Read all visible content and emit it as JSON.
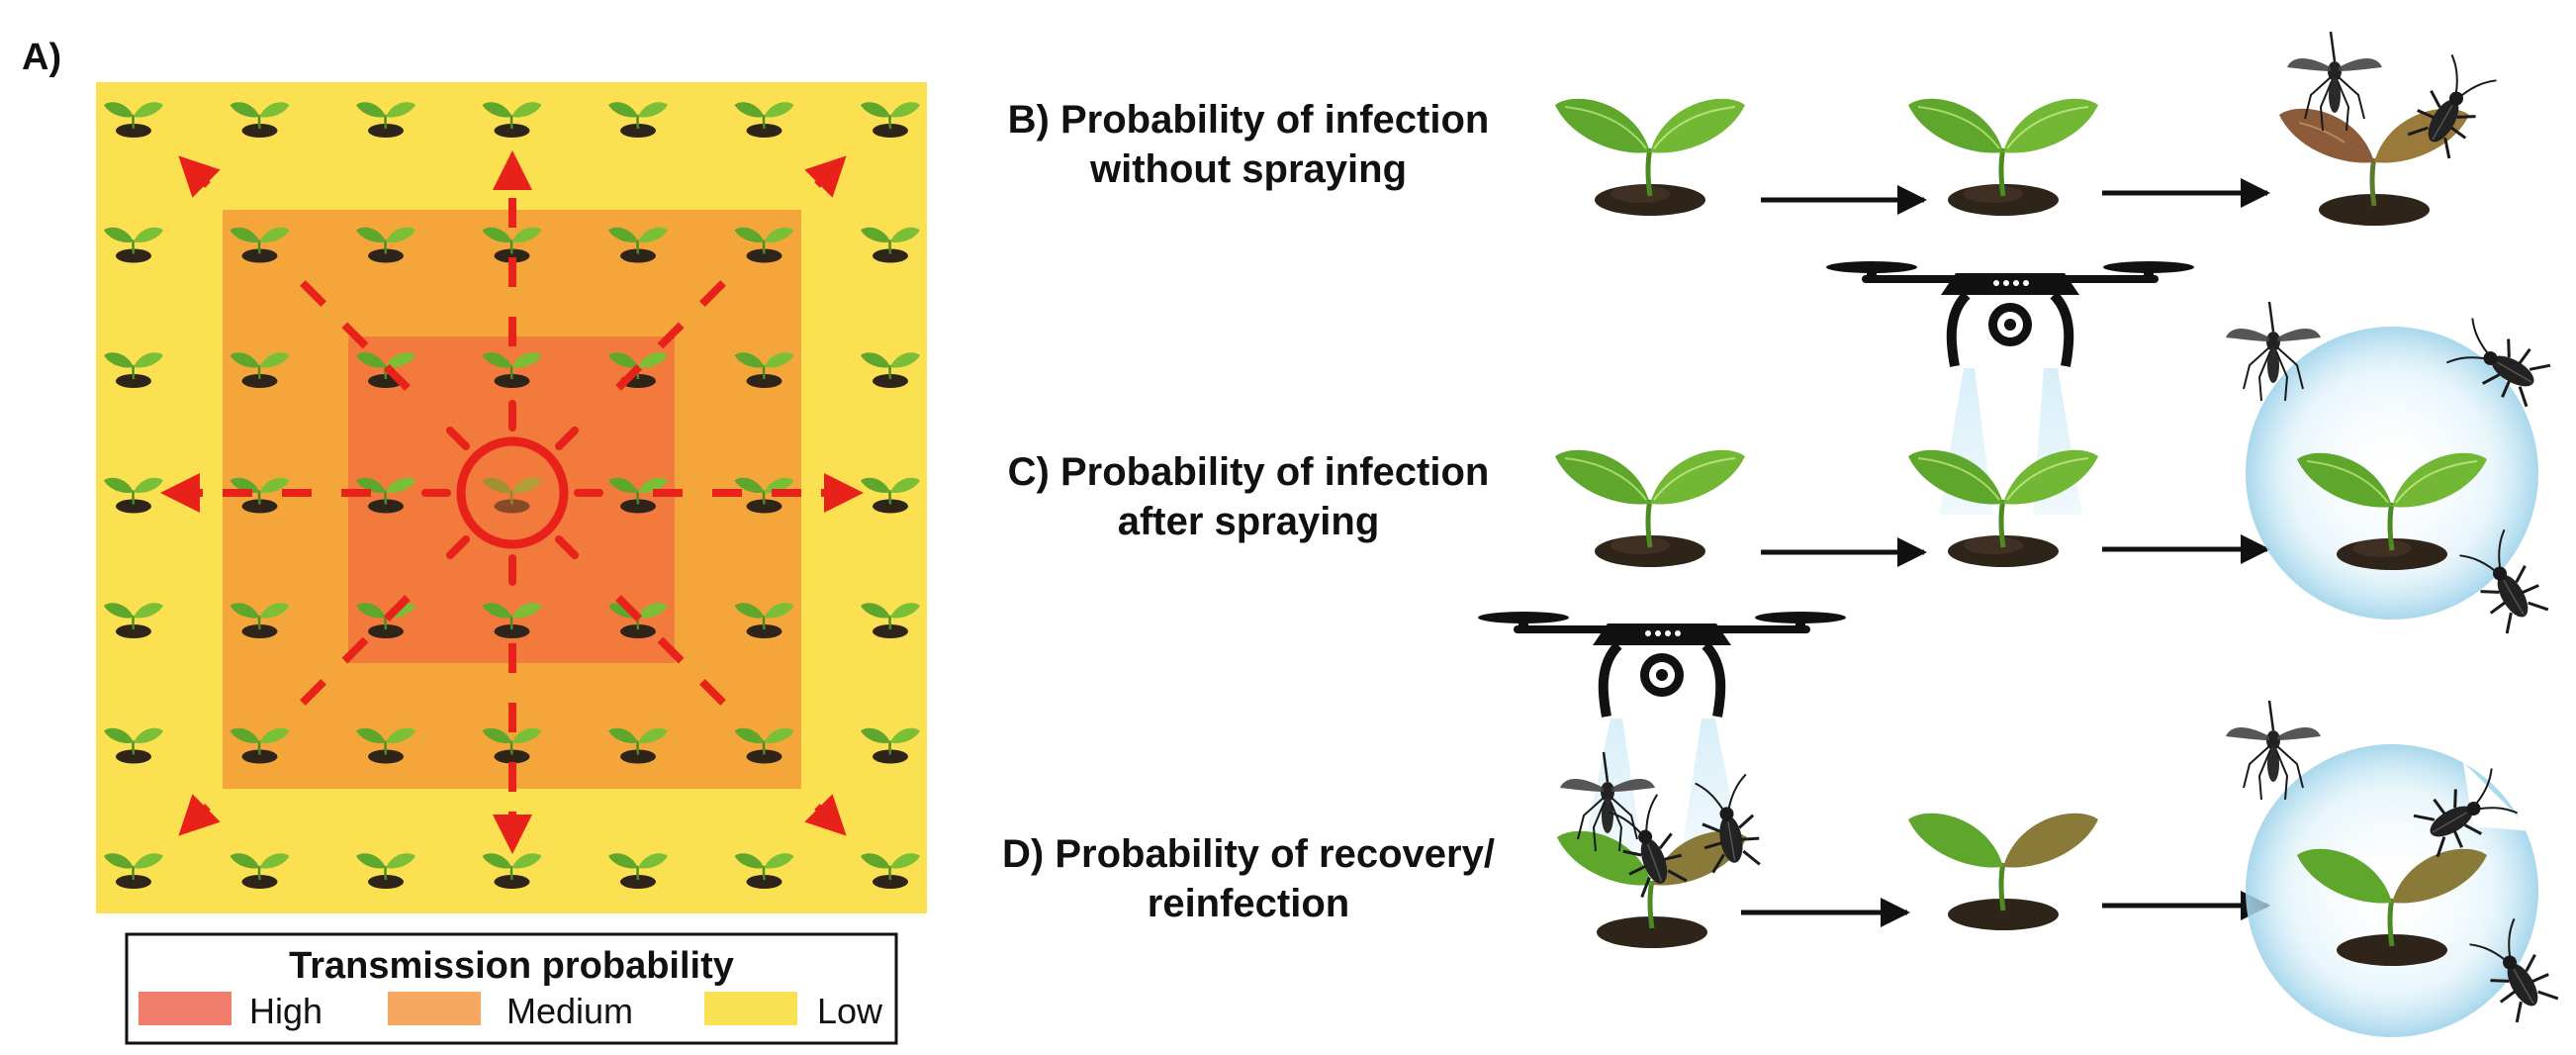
{
  "panel_a": {
    "label": "A)",
    "zones": [
      {
        "level": "Low",
        "color": "#fbe052"
      },
      {
        "level": "Medium",
        "color": "#f5a63a"
      },
      {
        "level": "High",
        "color": "#f17a3c"
      }
    ],
    "arrow_color": "#e8221b",
    "legend": {
      "title": "Transmission probability",
      "items": [
        {
          "label": "High",
          "color": "#f07c6b"
        },
        {
          "label": "Medium",
          "color": "#f6a860"
        },
        {
          "label": "Low",
          "color": "#f8e153"
        }
      ]
    }
  },
  "rows": [
    {
      "label_line1": "B) Probability of infection",
      "label_line2": "without spraying"
    },
    {
      "label_line1": "C) Probability of infection",
      "label_line2": "after spraying"
    },
    {
      "label_line1": "D) Probability of recovery/",
      "label_line2": "reinfection"
    }
  ],
  "colors": {
    "leaf_green": "#5ea62c",
    "leaf_light": "#9bd14a",
    "leaf_infected": "#8a5a3a",
    "soil": "#2f2419",
    "drone": "#111111",
    "spray": "#bfe3f2",
    "bubble": "#cde9f5"
  }
}
